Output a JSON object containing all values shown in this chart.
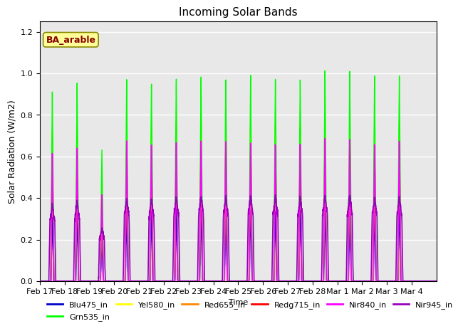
{
  "title": "Incoming Solar Bands",
  "xlabel": "Time",
  "ylabel": "Solar Radiation (W/m2)",
  "annotation": "BA_arable",
  "ylim": [
    0,
    1.25
  ],
  "series": {
    "Blu475_in": {
      "color": "#0000cc",
      "lw": 1.0,
      "zorder": 3
    },
    "Grn535_in": {
      "color": "#00ff00",
      "lw": 1.0,
      "zorder": 7
    },
    "Yel580_in": {
      "color": "#ffff00",
      "lw": 1.0,
      "zorder": 5
    },
    "Red655_in": {
      "color": "#ff8800",
      "lw": 1.0,
      "zorder": 4
    },
    "Redg715_in": {
      "color": "#ff0000",
      "lw": 1.0,
      "zorder": 3
    },
    "Nir840_in": {
      "color": "#ff00ff",
      "lw": 1.2,
      "zorder": 8
    },
    "Nir945_in": {
      "color": "#9900bb",
      "lw": 1.2,
      "zorder": 9
    }
  },
  "xtick_labels": [
    "Feb 17",
    "Feb 18",
    "Feb 19",
    "Feb 20",
    "Feb 21",
    "Feb 22",
    "Feb 23",
    "Feb 24",
    "Feb 25",
    "Feb 26",
    "Feb 27",
    "Feb 28",
    "Mar 1",
    "Mar 2",
    "Mar 3",
    "Mar 4"
  ],
  "peak_scale": {
    "Blu475_in": 0.35,
    "Grn535_in": 1.0,
    "Yel580_in": 0.78,
    "Red655_in": 0.78,
    "Redg715_in": 0.68,
    "Nir840_in": 0.68,
    "Nir945_in": 0.4
  },
  "day_peaks": [
    0.91,
    0.95,
    0.63,
    0.99,
    0.98,
    1.0,
    1.02,
    1.01,
    1.02,
    1.0,
    0.99,
    1.02,
    1.02,
    0.99,
    1.0,
    0.0
  ],
  "background_color": "#e8e8e8",
  "grid_color": "#ffffff",
  "annotation_bg": "#ffff99",
  "annotation_fg": "#880000",
  "annotation_edge": "#888800",
  "fig_bg": "#ffffff"
}
